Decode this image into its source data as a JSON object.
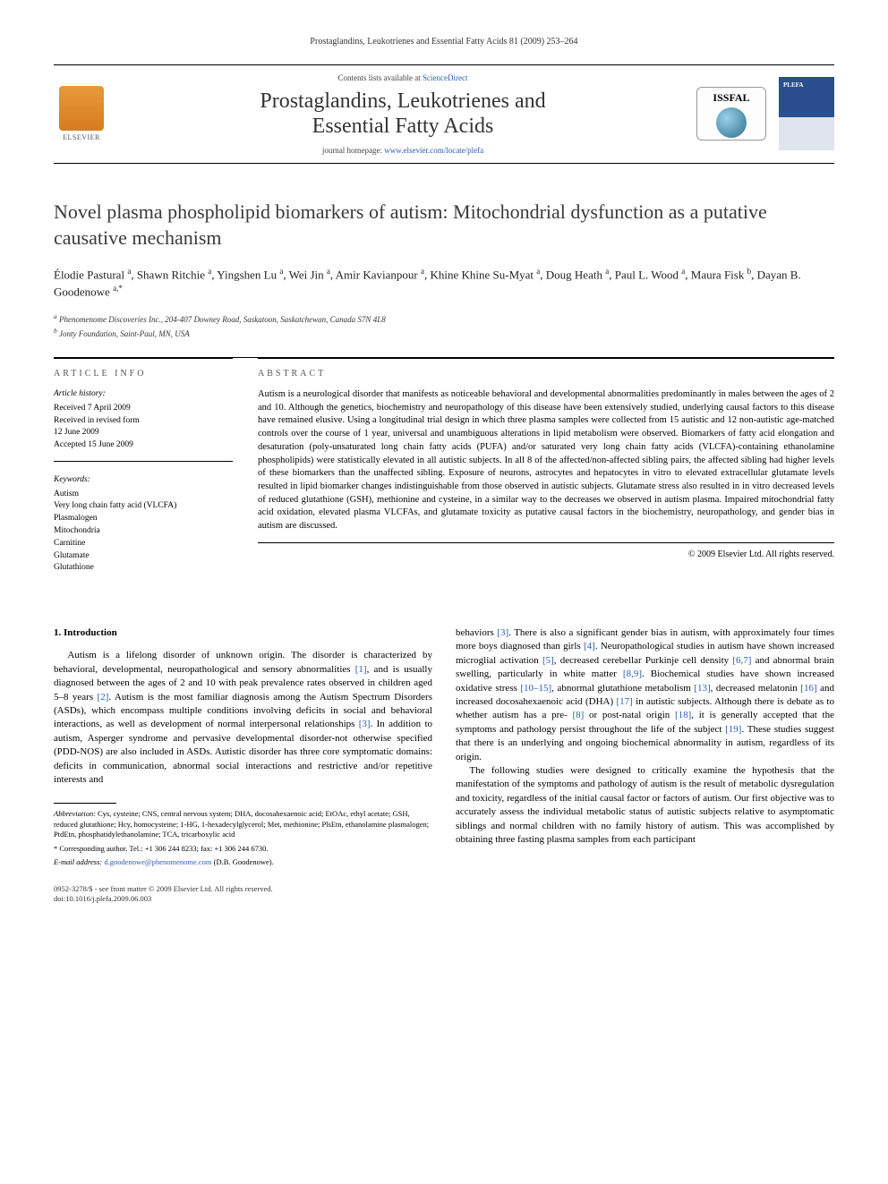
{
  "running_header": "Prostaglandins, Leukotrienes and Essential Fatty Acids 81 (2009) 253–264",
  "masthead": {
    "elsevier_label": "ELSEVIER",
    "contents_prefix": "Contents lists available at ",
    "contents_link": "ScienceDirect",
    "journal_name_line1": "Prostaglandins, Leukotrienes and",
    "journal_name_line2": "Essential Fatty Acids",
    "homepage_prefix": "journal homepage: ",
    "homepage_url": "www.elsevier.com/locate/plefa",
    "issfal_label": "ISSFAL",
    "cover_badge": "PLEFA"
  },
  "title": "Novel plasma phospholipid biomarkers of autism: Mitochondrial dysfunction as a putative causative mechanism",
  "authors_html": "Élodie Pastural <sup>a</sup>, Shawn Ritchie <sup>a</sup>, Yingshen Lu <sup>a</sup>, Wei Jin <sup>a</sup>, Amir Kavianpour <sup>a</sup>, Khine Khine Su-Myat <sup>a</sup>, Doug Heath <sup>a</sup>, Paul L. Wood <sup>a</sup>, Maura Fisk <sup>b</sup>, Dayan B. Goodenowe <sup>a,*</sup>",
  "affiliations": {
    "a": "Phenomenome Discoveries Inc., 204-407 Downey Road, Saskatoon, Saskatchewan, Canada S7N 4L8",
    "b": "Jonty Foundation, Saint-Paul, MN, USA"
  },
  "article_info": {
    "heading": "article info",
    "history_label": "Article history:",
    "received": "Received 7 April 2009",
    "revised1": "Received in revised form",
    "revised2": "12 June 2009",
    "accepted": "Accepted 15 June 2009",
    "keywords_label": "Keywords:",
    "keywords": [
      "Autism",
      "Very long chain fatty acid (VLCFA)",
      "Plasmalogen",
      "Mitochondria",
      "Carnitine",
      "Glutamate",
      "Glutathione"
    ]
  },
  "abstract": {
    "heading": "abstract",
    "text": "Autism is a neurological disorder that manifests as noticeable behavioral and developmental abnormalities predominantly in males between the ages of 2 and 10. Although the genetics, biochemistry and neuropathology of this disease have been extensively studied, underlying causal factors to this disease have remained elusive. Using a longitudinal trial design in which three plasma samples were collected from 15 autistic and 12 non-autistic age-matched controls over the course of 1 year, universal and unambiguous alterations in lipid metabolism were observed. Biomarkers of fatty acid elongation and desaturation (poly-unsaturated long chain fatty acids (PUFA) and/or saturated very long chain fatty acids (VLCFA)-containing ethanolamine phospholipids) were statistically elevated in all autistic subjects. In all 8 of the affected/non-affected sibling pairs, the affected sibling had higher levels of these biomarkers than the unaffected sibling. Exposure of neurons, astrocytes and hepatocytes in vitro to elevated extracellular glutamate levels resulted in lipid biomarker changes indistinguishable from those observed in autistic subjects. Glutamate stress also resulted in in vitro decreased levels of reduced glutathione (GSH), methionine and cysteine, in a similar way to the decreases we observed in autism plasma. Impaired mitochondrial fatty acid oxidation, elevated plasma VLCFAs, and glutamate toxicity as putative causal factors in the biochemistry, neuropathology, and gender bias in autism are discussed.",
    "copyright": "© 2009 Elsevier Ltd. All rights reserved."
  },
  "body": {
    "section_heading": "1. Introduction",
    "p1": "Autism is a lifelong disorder of unknown origin. The disorder is characterized by behavioral, developmental, neuropathological and sensory abnormalities [1], and is usually diagnosed between the ages of 2 and 10 with peak prevalence rates observed in children aged 5–8 years [2]. Autism is the most familiar diagnosis among the Autism Spectrum Disorders (ASDs), which encompass multiple conditions involving deficits in social and behavioral interactions, as well as development of normal interpersonal relationships [3]. In addition to autism, Asperger syndrome and pervasive developmental disorder-not otherwise specified (PDD-NOS) are also included in ASDs. Autistic disorder has three core symptomatic domains: deficits in communication, abnormal social interactions and restrictive and/or repetitive interests and",
    "p2": "behaviors [3]. There is also a significant gender bias in autism, with approximately four times more boys diagnosed than girls [4]. Neuropathological studies in autism have shown increased microglial activation [5], decreased cerebellar Purkinje cell density [6,7] and abnormal brain swelling, particularly in white matter [8,9]. Biochemical studies have shown increased oxidative stress [10–15], abnormal glutathione metabolism [13], decreased melatonin [16] and increased docosahexaenoic acid (DHA) [17] in autistic subjects. Although there is debate as to whether autism has a pre- [8] or post-natal origin [18], it is generally accepted that the symptoms and pathology persist throughout the life of the subject [19]. These studies suggest that there is an underlying and ongoing biochemical abnormality in autism, regardless of its origin.",
    "p3": "The following studies were designed to critically examine the hypothesis that the manifestation of the symptoms and pathology of autism is the result of metabolic dysregulation and toxicity, regardless of the initial causal factor or factors of autism. Our first objective was to accurately assess the individual metabolic status of autistic subjects relative to asymptomatic siblings and normal children with no family history of autism. This was accomplished by obtaining three fasting plasma samples from each participant"
  },
  "footnotes": {
    "abbrev_label": "Abbreviation:",
    "abbrev_text": " Cys, cysteine; CNS, central nervous system; DHA, docosahexaenoic acid; EtOAc, ethyl acetate; GSH, reduced glutathione; Hcy, homocysteine; 1-HG, 1-hexadecylglycerol; Met, methionine; PlsEtn, ethanolamine plasmalogen; PtdEtn, phosphatidylethanolamine; TCA, tricarboxylic acid",
    "corr_label": "* Corresponding author.",
    "corr_text": " Tel.: +1 306 244 8233; fax: +1 306 244 6730.",
    "email_label": "E-mail address:",
    "email": " d.goodenowe@phenomenome.com ",
    "email_suffix": "(D.B. Goodenowe)."
  },
  "front_matter": {
    "line1": "0952-3278/$ - see front matter © 2009 Elsevier Ltd. All rights reserved.",
    "line2": "doi:10.1016/j.plefa.2009.06.003"
  },
  "colors": {
    "link": "#2a5db0",
    "text": "#000000",
    "elsevier_orange": "#e08427"
  }
}
